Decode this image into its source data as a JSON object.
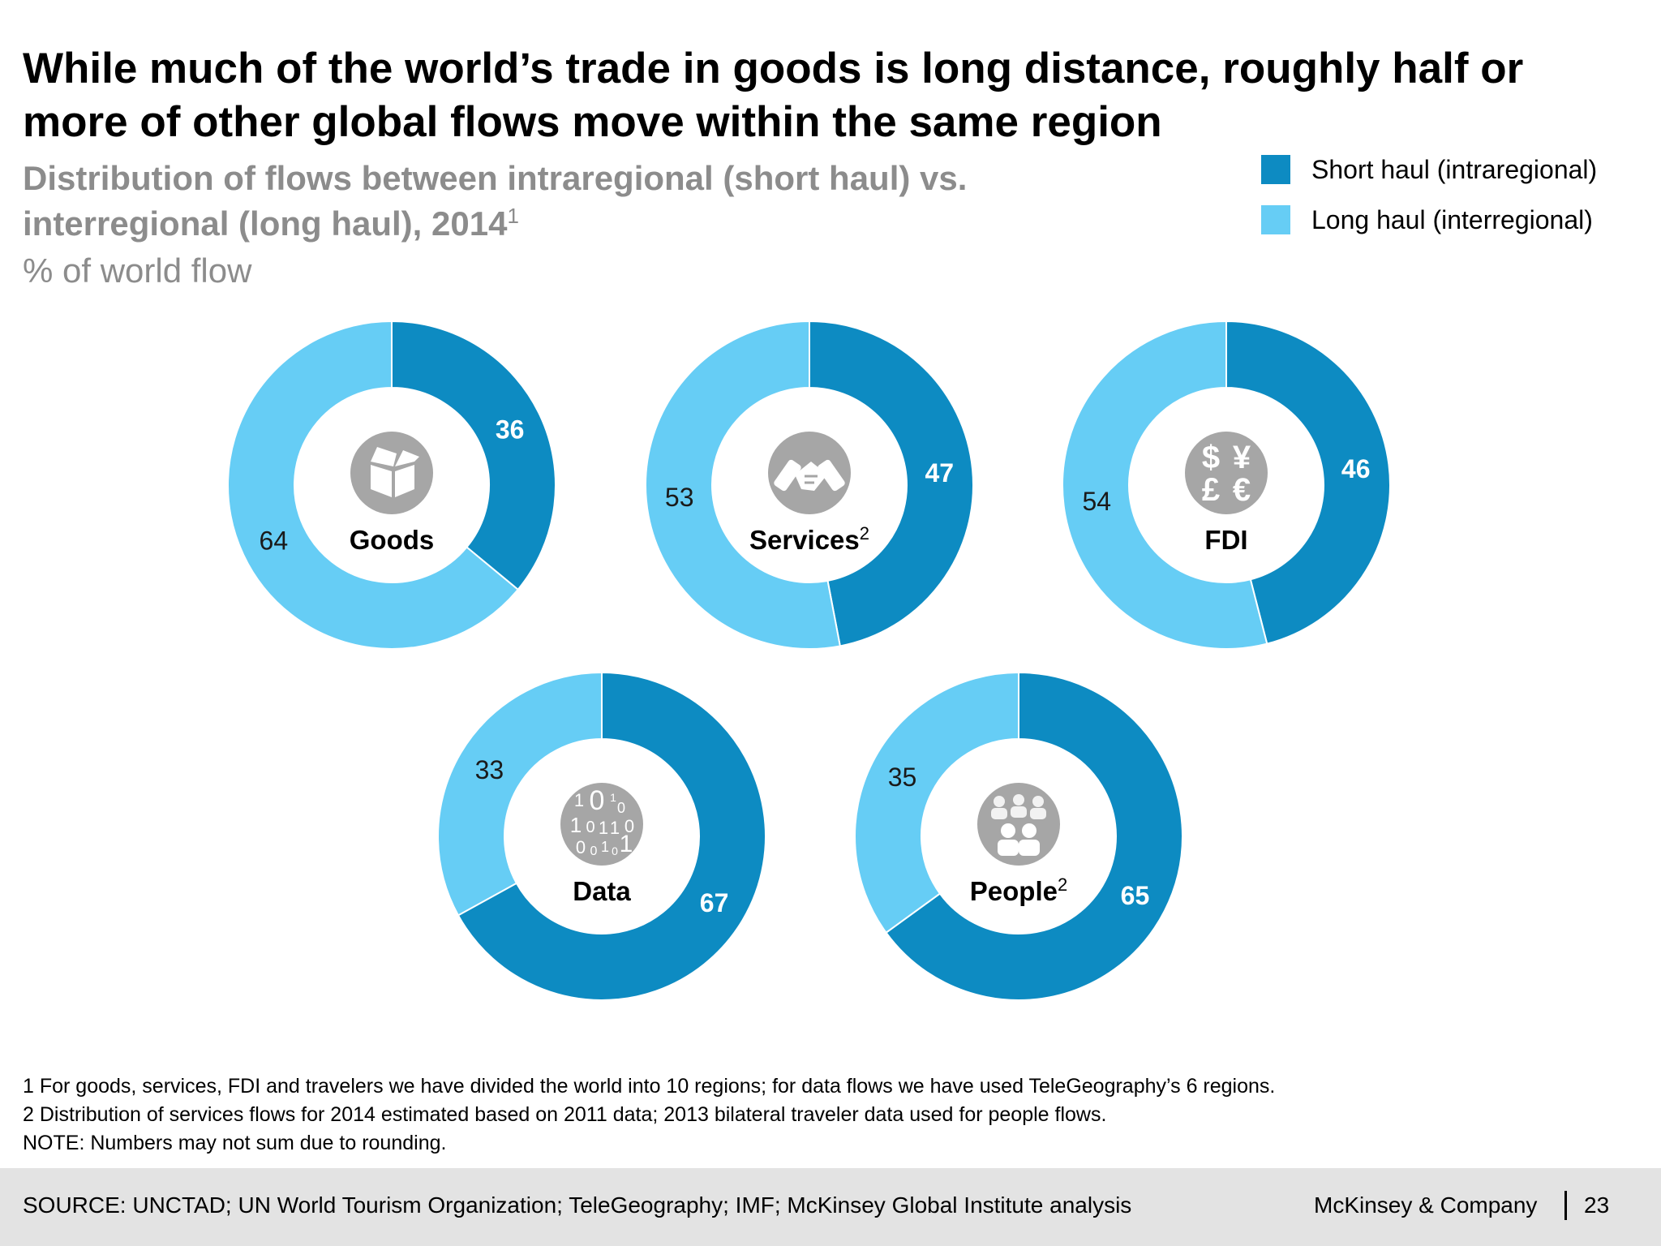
{
  "title": "While much of the world’s trade in goods is long distance, roughly half or more of other global flows move within the same region",
  "subtitle": "Distribution of flows between intraregional (short haul) vs. interregional (long haul), 2014",
  "subtitle_sup": "1",
  "unit": "% of world flow",
  "legend": [
    {
      "label": "Short haul (intraregional)",
      "color": "#0d8bc2"
    },
    {
      "label": "Long haul (interregional)",
      "color": "#66cdf5"
    }
  ],
  "chart_data": {
    "type": "donut",
    "series": [
      {
        "name": "Short haul (intraregional)",
        "color": "#0d8bc2"
      },
      {
        "name": "Long haul (interregional)",
        "color": "#66cdf5"
      }
    ],
    "charts": [
      {
        "category": "Goods",
        "sup": "",
        "icon": "box-icon",
        "short_haul": 36,
        "long_haul": 64
      },
      {
        "category": "Services",
        "sup": "2",
        "icon": "handshake-icon",
        "short_haul": 47,
        "long_haul": 53
      },
      {
        "category": "FDI",
        "sup": "",
        "icon": "currency-icon",
        "short_haul": 46,
        "long_haul": 54
      },
      {
        "category": "Data",
        "sup": "",
        "icon": "binary-data-icon",
        "short_haul": 67,
        "long_haul": 33
      },
      {
        "category": "People",
        "sup": "2",
        "icon": "people-icon",
        "short_haul": 65,
        "long_haul": 35
      }
    ]
  },
  "icon_color": "#a6a6a6",
  "footnotes": [
    "1 For goods, services, FDI and travelers we have divided the world into 10 regions; for data flows we have used TeleGeography’s 6 regions.",
    "2 Distribution of services flows for 2014 estimated based on 2011 data; 2013 bilateral traveler data used for people flows.",
    "NOTE: Numbers may not sum due to rounding."
  ],
  "footer": {
    "source": "SOURCE: UNCTAD; UN World Tourism Organization; TeleGeography; IMF; McKinsey Global Institute analysis",
    "company": "McKinsey & Company",
    "page": "23"
  }
}
